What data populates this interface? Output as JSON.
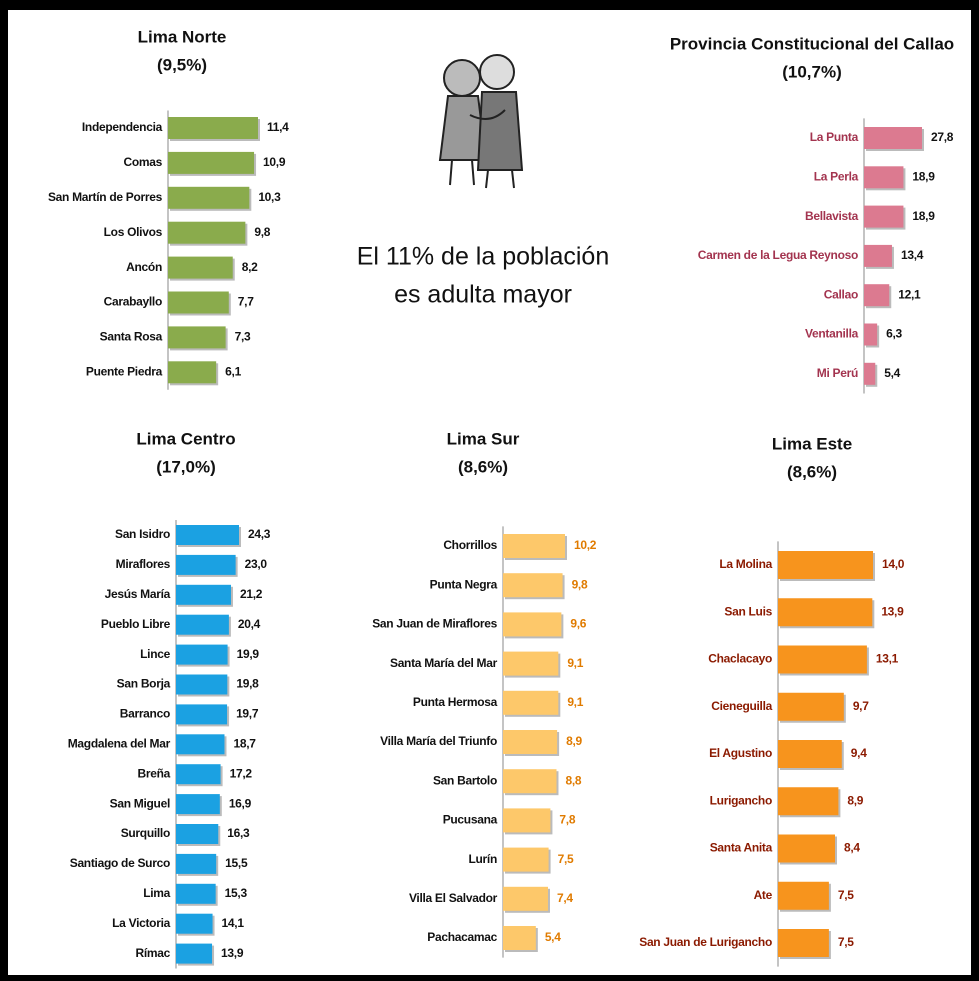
{
  "headline": [
    "El 11% de la población",
    "es adulta mayor"
  ],
  "chart_data": [
    {
      "type": "bar",
      "horizontal": true,
      "title": "Lima Norte",
      "subtitle": "(9,5%)",
      "color": "#8aab4c",
      "label_color": "#111111",
      "value_label_color": "#111111",
      "categories": [
        "Independencia",
        "Comas",
        "San Martín de Porres",
        "Los Olivos",
        "Ancón",
        "Carabayllo",
        "Santa Rosa",
        "Puente Piedra"
      ],
      "values": [
        11.4,
        10.9,
        10.3,
        9.8,
        8.2,
        7.7,
        7.3,
        6.1
      ],
      "value_labels": [
        "11,4",
        "10,9",
        "10,3",
        "9,8",
        "8,2",
        "7,7",
        "7,3",
        "6,1"
      ]
    },
    {
      "type": "bar",
      "horizontal": true,
      "title": "Provincia Constitucional del Callao",
      "subtitle": "(10,7%)",
      "color": "#dc7a90",
      "label_color": "#a3344f",
      "value_label_color": "#111111",
      "categories": [
        "La Punta",
        "La Perla",
        "Bellavista",
        "Carmen de la Legua Reynoso",
        "Callao",
        "Ventanilla",
        "Mi Perú"
      ],
      "values": [
        27.8,
        18.9,
        18.9,
        13.4,
        12.1,
        6.3,
        5.4
      ],
      "value_labels": [
        "27,8",
        "18,9",
        "18,9",
        "13,4",
        "12,1",
        "6,3",
        "5,4"
      ]
    },
    {
      "type": "bar",
      "horizontal": true,
      "title": "Lima Centro",
      "subtitle": "(17,0%)",
      "color": "#1ba1e2",
      "label_color": "#111111",
      "value_label_color": "#111111",
      "categories": [
        "San Isidro",
        "Miraflores",
        "Jesús María",
        "Pueblo Libre",
        "Lince",
        "San Borja",
        "Barranco",
        "Magdalena del Mar",
        "Breña",
        "San Miguel",
        "Surquillo",
        "Santiago de Surco",
        "Lima",
        "La Victoria",
        "Rímac"
      ],
      "values": [
        24.3,
        23,
        21.2,
        20.4,
        19.9,
        19.8,
        19.7,
        18.7,
        17.2,
        16.9,
        16.3,
        15.5,
        15.3,
        14.1,
        13.9
      ],
      "value_labels": [
        "24,3",
        "23,0",
        "21,2",
        "20,4",
        "19,9",
        "19,8",
        "19,7",
        "18,7",
        "17,2",
        "16,9",
        "16,3",
        "15,5",
        "15,3",
        "14,1",
        "13,9"
      ]
    },
    {
      "type": "bar",
      "horizontal": true,
      "title": "Lima Sur",
      "subtitle": "(8,6%)",
      "color": "#fdc86a",
      "label_color": "#111111",
      "value_label_color": "#e07b00",
      "categories": [
        "Chorrillos",
        "Punta Negra",
        "San Juan de Miraflores",
        "Santa María del Mar",
        "Punta Hermosa",
        "Villa María del Triunfo",
        "San Bartolo",
        "Pucusana",
        "Lurín",
        "Villa El Salvador",
        "Pachacamac"
      ],
      "values": [
        10.2,
        9.8,
        9.6,
        9.1,
        9.1,
        8.9,
        8.8,
        7.8,
        7.5,
        7.4,
        5.4
      ],
      "value_labels": [
        "10,2",
        "9,8",
        "9,6",
        "9,1",
        "9,1",
        "8,9",
        "8,8",
        "7,8",
        "7,5",
        "7,4",
        "5,4"
      ]
    },
    {
      "type": "bar",
      "horizontal": true,
      "title": "Lima Este",
      "subtitle": "(8,6%)",
      "color": "#f7941d",
      "label_color": "#8b1a00",
      "value_label_color": "#8b1a00",
      "categories": [
        "La Molina",
        "San Luis",
        "Chaclacayo",
        "Cieneguilla",
        "El Agustino",
        "Lurigancho",
        "Santa Anita",
        "Ate",
        "San Juan de Lurigancho"
      ],
      "values": [
        14,
        13.9,
        13.1,
        9.7,
        9.4,
        8.9,
        8.4,
        7.5,
        7.5
      ],
      "value_labels": [
        "14,0",
        "13,9",
        "13,1",
        "9,7",
        "9,4",
        "8,9",
        "8,4",
        "7,5",
        "7,5"
      ]
    }
  ]
}
